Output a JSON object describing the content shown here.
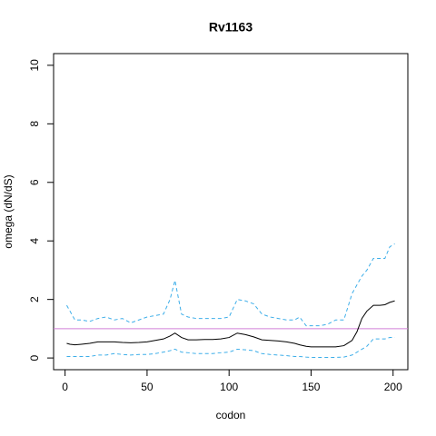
{
  "chart_data": {
    "type": "line",
    "title": "Rv1163",
    "x_label": "codon",
    "y_label": "omega (dN/dS)",
    "x": [
      1,
      3,
      6,
      10,
      15,
      20,
      25,
      30,
      35,
      40,
      45,
      50,
      55,
      60,
      64,
      67,
      71,
      75,
      80,
      85,
      90,
      95,
      100,
      105,
      110,
      115,
      120,
      125,
      130,
      135,
      140,
      143,
      147,
      150,
      155,
      160,
      165,
      170,
      175,
      178,
      181,
      184,
      188,
      192,
      195,
      198,
      201
    ],
    "series": [
      {
        "color": "#000000",
        "dashed": false,
        "values": [
          0.5,
          0.47,
          0.45,
          0.47,
          0.5,
          0.55,
          0.55,
          0.55,
          0.53,
          0.52,
          0.53,
          0.55,
          0.6,
          0.65,
          0.75,
          0.85,
          0.7,
          0.62,
          0.62,
          0.63,
          0.63,
          0.65,
          0.7,
          0.85,
          0.8,
          0.72,
          0.62,
          0.6,
          0.58,
          0.55,
          0.5,
          0.45,
          0.4,
          0.38,
          0.38,
          0.38,
          0.38,
          0.42,
          0.6,
          0.9,
          1.35,
          1.6,
          1.8,
          1.8,
          1.82,
          1.9,
          1.95
        ]
      },
      {
        "color": "#3daee9",
        "dashed": true,
        "values": [
          1.8,
          1.6,
          1.3,
          1.3,
          1.25,
          1.35,
          1.4,
          1.3,
          1.35,
          1.2,
          1.3,
          1.4,
          1.45,
          1.5,
          2.0,
          2.65,
          1.5,
          1.4,
          1.35,
          1.35,
          1.35,
          1.35,
          1.4,
          2.0,
          1.95,
          1.85,
          1.5,
          1.4,
          1.35,
          1.3,
          1.3,
          1.4,
          1.1,
          1.1,
          1.1,
          1.15,
          1.3,
          1.3,
          2.2,
          2.5,
          2.8,
          3.0,
          3.4,
          3.4,
          3.4,
          3.8,
          3.9
        ]
      },
      {
        "color": "#3daee9",
        "dashed": true,
        "values": [
          0.05,
          0.05,
          0.05,
          0.05,
          0.05,
          0.1,
          0.1,
          0.15,
          0.12,
          0.1,
          0.12,
          0.12,
          0.15,
          0.2,
          0.25,
          0.3,
          0.2,
          0.18,
          0.15,
          0.15,
          0.15,
          0.18,
          0.2,
          0.3,
          0.28,
          0.25,
          0.15,
          0.12,
          0.1,
          0.08,
          0.05,
          0.05,
          0.03,
          0.02,
          0.02,
          0.02,
          0.02,
          0.03,
          0.1,
          0.2,
          0.3,
          0.4,
          0.65,
          0.65,
          0.65,
          0.7,
          0.7
        ]
      }
    ],
    "reference_line": {
      "value": 1,
      "color": "#d17fd6"
    },
    "xlim": [
      -7,
      209
    ],
    "ylim": [
      -0.4,
      10.4
    ],
    "xticks": [
      0,
      50,
      100,
      150,
      200
    ],
    "yticks": [
      0,
      2,
      4,
      6,
      8,
      10
    ]
  }
}
